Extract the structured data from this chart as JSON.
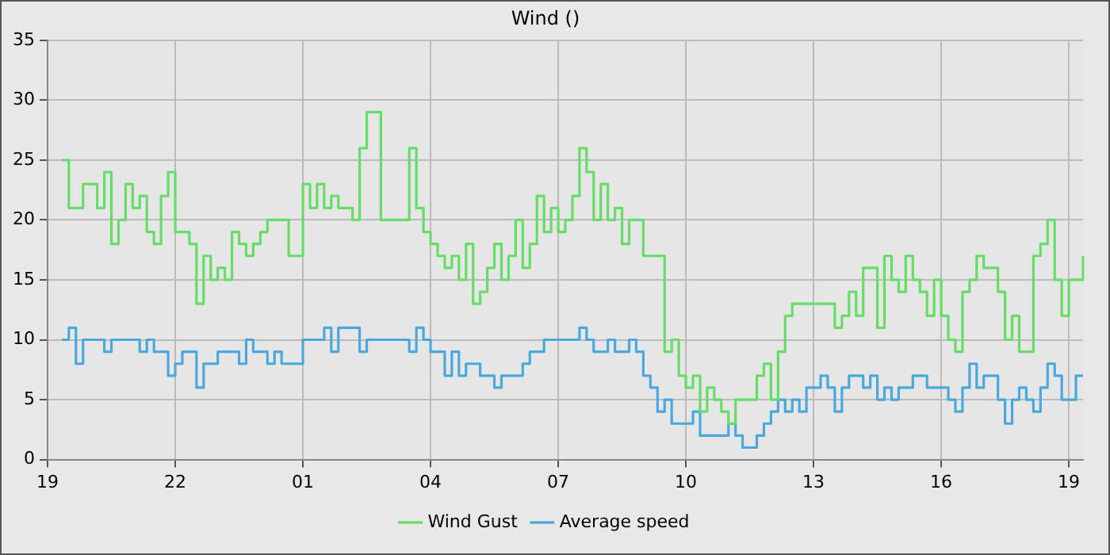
{
  "chart_data": {
    "type": "step",
    "title": "Wind ()",
    "ylim": [
      0,
      35
    ],
    "categories": [
      "19",
      null,
      null,
      null,
      null,
      null,
      null,
      null,
      null,
      null,
      null,
      null,
      null,
      null,
      null,
      null,
      null,
      null,
      "22",
      null,
      null,
      null,
      null,
      null,
      null,
      null,
      null,
      null,
      null,
      null,
      null,
      null,
      null,
      null,
      null,
      null,
      "01",
      null,
      null,
      null,
      null,
      null,
      null,
      null,
      null,
      null,
      null,
      null,
      null,
      null,
      null,
      null,
      null,
      null,
      "04",
      null,
      null,
      null,
      null,
      null,
      null,
      null,
      null,
      null,
      null,
      null,
      null,
      null,
      null,
      null,
      null,
      null,
      "07",
      null,
      null,
      null,
      null,
      null,
      null,
      null,
      null,
      null,
      null,
      null,
      null,
      null,
      null,
      null,
      null,
      null,
      "10",
      null,
      null,
      null,
      null,
      null,
      null,
      null,
      null,
      null,
      null,
      null,
      null,
      null,
      null,
      null,
      null,
      null,
      "13",
      null,
      null,
      null,
      null,
      null,
      null,
      null,
      null,
      null,
      null,
      null,
      null,
      null,
      null,
      null,
      null,
      null,
      "16",
      null,
      null,
      null,
      null,
      null,
      null,
      null,
      null,
      null,
      null,
      null,
      null,
      null,
      null,
      null,
      null,
      null,
      "19",
      null,
      null
    ],
    "yticks": [
      0,
      5,
      10,
      15,
      20,
      25,
      30,
      35
    ],
    "grid": true,
    "legend": "bottom",
    "series": [
      {
        "name": "Wind Gust",
        "color": "#66dd66",
        "values": [
          null,
          null,
          25,
          21,
          21,
          23,
          23,
          21,
          24,
          18,
          20,
          23,
          21,
          22,
          19,
          18,
          22,
          24,
          19,
          19,
          18,
          13,
          17,
          15,
          16,
          15,
          19,
          18,
          17,
          18,
          19,
          20,
          20,
          20,
          17,
          17,
          23,
          21,
          23,
          21,
          22,
          21,
          21,
          20,
          26,
          29,
          29,
          20,
          20,
          20,
          20,
          26,
          21,
          19,
          18,
          17,
          16,
          17,
          15,
          18,
          13,
          14,
          16,
          18,
          15,
          17,
          20,
          16,
          18,
          22,
          19,
          21,
          19,
          20,
          22,
          26,
          24,
          20,
          23,
          20,
          21,
          18,
          20,
          20,
          17,
          17,
          17,
          9,
          10,
          7,
          6,
          7,
          4,
          6,
          5,
          4,
          3,
          5,
          5,
          5,
          7,
          8,
          5,
          9,
          12,
          13,
          13,
          13,
          13,
          13,
          13,
          11,
          12,
          14,
          12,
          16,
          16,
          11,
          17,
          15,
          14,
          17,
          15,
          14,
          12,
          15,
          12,
          10,
          9,
          14,
          15,
          17,
          16,
          16,
          14,
          10,
          12,
          9,
          9,
          17,
          18,
          20,
          15,
          12,
          15,
          15,
          17
        ]
      },
      {
        "name": "Average speed",
        "color": "#4aa8dc",
        "values": [
          null,
          null,
          10,
          11,
          8,
          10,
          10,
          10,
          9,
          10,
          10,
          10,
          10,
          9,
          10,
          9,
          9,
          7,
          8,
          9,
          9,
          6,
          8,
          8,
          9,
          9,
          9,
          8,
          10,
          9,
          9,
          8,
          9,
          8,
          8,
          8,
          10,
          10,
          10,
          11,
          9,
          11,
          11,
          11,
          9,
          10,
          10,
          10,
          10,
          10,
          10,
          9,
          11,
          10,
          9,
          9,
          7,
          9,
          7,
          8,
          8,
          7,
          7,
          6,
          7,
          7,
          7,
          8,
          9,
          9,
          10,
          10,
          10,
          10,
          10,
          11,
          10,
          9,
          9,
          10,
          9,
          9,
          10,
          9,
          7,
          6,
          4,
          5,
          3,
          3,
          3,
          4,
          2,
          2,
          2,
          2,
          3,
          2,
          1,
          1,
          2,
          3,
          4,
          5,
          4,
          5,
          4,
          6,
          6,
          7,
          6,
          4,
          6,
          7,
          7,
          6,
          7,
          5,
          6,
          5,
          6,
          6,
          7,
          7,
          6,
          6,
          6,
          5,
          4,
          6,
          8,
          6,
          7,
          7,
          5,
          3,
          5,
          6,
          5,
          4,
          6,
          8,
          7,
          5,
          5,
          7,
          7
        ]
      }
    ]
  }
}
